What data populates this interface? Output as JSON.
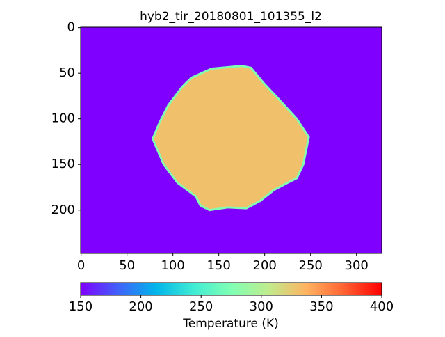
{
  "chart_data": {
    "type": "image",
    "title": "hyb2_tir_20180801_101355_l2",
    "xlim": [
      -0.5,
      327.5
    ],
    "ylim": [
      247.5,
      -0.5
    ],
    "xticks": [
      0,
      50,
      100,
      150,
      200,
      250,
      300
    ],
    "yticks": [
      0,
      50,
      100,
      150,
      200
    ],
    "colormap": "rainbow",
    "image": {
      "background_value": 150,
      "regions": [
        {
          "value": 330,
          "x": [
            142,
            175,
            185,
            200,
            215,
            235,
            248,
            242,
            235,
            225,
            210,
            195,
            180,
            160,
            140,
            130,
            125,
            105,
            90,
            78,
            85,
            95,
            110,
            120
          ],
          "y": [
            45,
            42,
            44,
            62,
            78,
            100,
            120,
            150,
            165,
            170,
            178,
            190,
            198,
            197,
            200,
            195,
            185,
            170,
            150,
            122,
            105,
            85,
            65,
            55
          ]
        }
      ]
    },
    "colorbar": {
      "label": "Temperature (K)",
      "lim": [
        150,
        400
      ],
      "ticks": [
        150,
        200,
        250,
        300,
        350,
        400
      ]
    }
  }
}
